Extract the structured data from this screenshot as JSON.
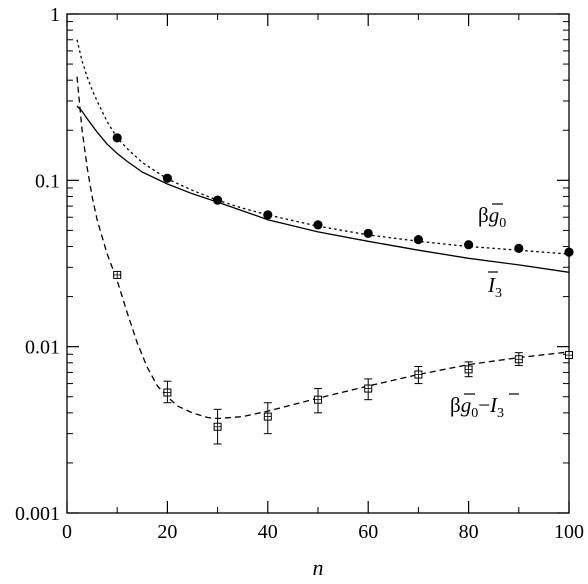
{
  "chart_data": {
    "type": "line",
    "xlabel": "n",
    "ylabel": "",
    "xlim": [
      0,
      100
    ],
    "ylim": [
      0.001,
      1
    ],
    "yscale": "log",
    "xticks": [
      0,
      20,
      40,
      60,
      80,
      100
    ],
    "yticks": [
      0.001,
      0.01,
      0.1,
      1
    ],
    "xtick_labels": [
      "0",
      "20",
      "40",
      "60",
      "80",
      "100"
    ],
    "ytick_labels": [
      "0.001",
      "0.01",
      "0.1",
      "1"
    ],
    "grid": false,
    "series": [
      {
        "label": "βḡ0",
        "style": "dotted",
        "x": [
          2,
          3,
          4,
          5,
          6,
          8,
          10,
          12,
          15,
          20,
          25,
          30,
          35,
          40,
          50,
          60,
          70,
          80,
          90,
          100
        ],
        "values": [
          0.7,
          0.52,
          0.42,
          0.35,
          0.3,
          0.225,
          0.18,
          0.155,
          0.128,
          0.102,
          0.087,
          0.076,
          0.068,
          0.062,
          0.053,
          0.047,
          0.043,
          0.04,
          0.038,
          0.036
        ]
      },
      {
        "label": "βḡ0 points",
        "style": "filled-circle",
        "x": [
          10,
          20,
          30,
          40,
          50,
          60,
          70,
          80,
          90,
          100
        ],
        "values": [
          0.18,
          0.103,
          0.076,
          0.062,
          0.054,
          0.048,
          0.044,
          0.041,
          0.039,
          0.037
        ]
      },
      {
        "label": "Ī3",
        "style": "solid",
        "x": [
          2,
          3,
          4,
          6,
          8,
          10,
          12,
          15,
          20,
          25,
          30,
          40,
          50,
          60,
          70,
          80,
          90,
          100
        ],
        "values": [
          0.28,
          0.26,
          0.235,
          0.195,
          0.165,
          0.145,
          0.13,
          0.112,
          0.095,
          0.083,
          0.074,
          0.058,
          0.049,
          0.043,
          0.038,
          0.034,
          0.031,
          0.028
        ]
      },
      {
        "label": "βḡ0−Ī3",
        "style": "dashed",
        "x": [
          2,
          3,
          4,
          5,
          6,
          8,
          10,
          12,
          14,
          16,
          18,
          20,
          22,
          25,
          28,
          30,
          35,
          40,
          50,
          60,
          70,
          80,
          90,
          100
        ],
        "values": [
          0.42,
          0.2,
          0.12,
          0.08,
          0.058,
          0.036,
          0.025,
          0.016,
          0.0105,
          0.0075,
          0.0058,
          0.005,
          0.0044,
          0.004,
          0.00375,
          0.0037,
          0.0038,
          0.0041,
          0.0049,
          0.0058,
          0.0068,
          0.0078,
          0.0086,
          0.0093
        ]
      },
      {
        "label": "βḡ0−Ī3 points",
        "style": "open-square-errorbar",
        "x": [
          10,
          20,
          30,
          40,
          50,
          60,
          70,
          80,
          90,
          100
        ],
        "values": [
          0.027,
          0.0053,
          0.0033,
          0.0038,
          0.0048,
          0.0056,
          0.0068,
          0.0073,
          0.0084,
          0.0089
        ],
        "err_low": [
          0.0265,
          0.0046,
          0.0026,
          0.003,
          0.004,
          0.0048,
          0.006,
          0.0066,
          0.0077,
          0.0086
        ],
        "err_high": [
          0.0275,
          0.0062,
          0.0042,
          0.0046,
          0.0056,
          0.0064,
          0.0076,
          0.0081,
          0.0092,
          0.0092
        ]
      }
    ],
    "annotations": {
      "bg0": {
        "prefix": "β",
        "main": "g",
        "sub": "0"
      },
      "i3": {
        "main": "I",
        "sub": "3"
      },
      "diff": {
        "prefix": "β",
        "main": "g",
        "sub": "0",
        "minus": "−",
        "main2": "I",
        "sub2": "3"
      }
    }
  }
}
